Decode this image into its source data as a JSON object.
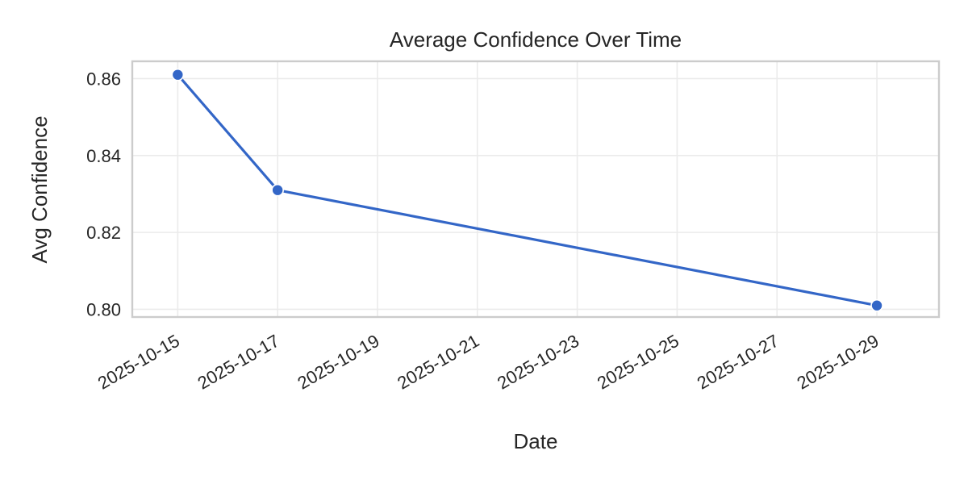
{
  "chart_data": {
    "type": "line",
    "title": "Average Confidence Over Time",
    "xlabel": "Date",
    "ylabel": "Avg Confidence",
    "xlim": [
      "2025-10-14T02:10",
      "2025-10-30T05:50"
    ],
    "ylim": [
      0.798,
      0.8645
    ],
    "x_ticks": [
      "2025-10-15",
      "2025-10-17",
      "2025-10-19",
      "2025-10-21",
      "2025-10-23",
      "2025-10-25",
      "2025-10-27",
      "2025-10-29"
    ],
    "y_ticks": [
      0.8,
      0.82,
      0.84,
      0.86
    ],
    "y_tick_labels": [
      "0.80",
      "0.82",
      "0.84",
      "0.86"
    ],
    "grid": true,
    "series": [
      {
        "color": "#3366c7",
        "points": [
          {
            "x": "2025-10-15",
            "y": 0.861
          },
          {
            "x": "2025-10-17",
            "y": 0.831
          },
          {
            "x": "2025-10-29",
            "y": 0.801
          }
        ]
      }
    ]
  }
}
